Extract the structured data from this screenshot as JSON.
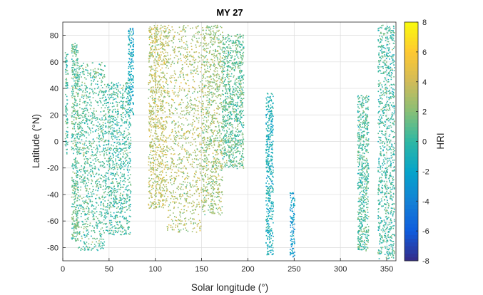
{
  "chart_data": {
    "type": "scatter",
    "title": "MY 27",
    "xlabel": "Solar longitude (°)",
    "ylabel": "Latitude (°N)",
    "xlim": [
      0,
      360
    ],
    "ylim": [
      -90,
      90
    ],
    "xticks": [
      0,
      50,
      100,
      150,
      200,
      250,
      300,
      350
    ],
    "yticks": [
      -80,
      -60,
      -40,
      -20,
      0,
      20,
      40,
      60,
      80
    ],
    "grid": true,
    "colorbar": {
      "label": "HRI",
      "clim": [
        -8,
        8
      ],
      "ticks": [
        -8,
        -6,
        -4,
        -2,
        0,
        2,
        4,
        6,
        8
      ],
      "colormap": "parula",
      "colors": [
        "#352a87",
        "#0f5cdd",
        "#1481d6",
        "#06a4ca",
        "#2eb7a4",
        "#87bf77",
        "#d1bb59",
        "#fec832",
        "#f9fb0e"
      ]
    },
    "series": [
      {
        "ls_range": [
          2,
          5
        ],
        "lat_range": [
          -10,
          68
        ],
        "hri_mean": 0.5
      },
      {
        "ls_range": [
          9,
          16
        ],
        "lat_range": [
          -75,
          75
        ],
        "hri_mean": 1.0
      },
      {
        "ls_range": [
          16,
          45
        ],
        "lat_range": [
          -82,
          60
        ],
        "hri_mean": 0.8
      },
      {
        "ls_range": [
          45,
          73
        ],
        "lat_range": [
          -70,
          45
        ],
        "hri_mean": 0.3
      },
      {
        "ls_range": [
          70,
          76
        ],
        "lat_range": [
          20,
          86
        ],
        "hri_mean": -1.5
      },
      {
        "ls_range": [
          92,
          112
        ],
        "lat_range": [
          -50,
          88
        ],
        "hri_mean": 3.5
      },
      {
        "ls_range": [
          112,
          150
        ],
        "lat_range": [
          -68,
          88
        ],
        "hri_mean": 3.0
      },
      {
        "ls_range": [
          150,
          172
        ],
        "lat_range": [
          -55,
          88
        ],
        "hri_mean": 2.5
      },
      {
        "ls_range": [
          172,
          195
        ],
        "lat_range": [
          -20,
          82
        ],
        "hri_mean": 1.0
      },
      {
        "ls_range": [
          219,
          227
        ],
        "lat_range": [
          -85,
          37
        ],
        "hri_mean": -1.0
      },
      {
        "ls_range": [
          245,
          250
        ],
        "lat_range": [
          -87,
          -38
        ],
        "hri_mean": -2.5
      },
      {
        "ls_range": [
          318,
          330
        ],
        "lat_range": [
          -82,
          35
        ],
        "hri_mean": 0.5
      },
      {
        "ls_range": [
          340,
          358
        ],
        "lat_range": [
          -88,
          88
        ],
        "hri_mean": 0.3
      }
    ]
  }
}
